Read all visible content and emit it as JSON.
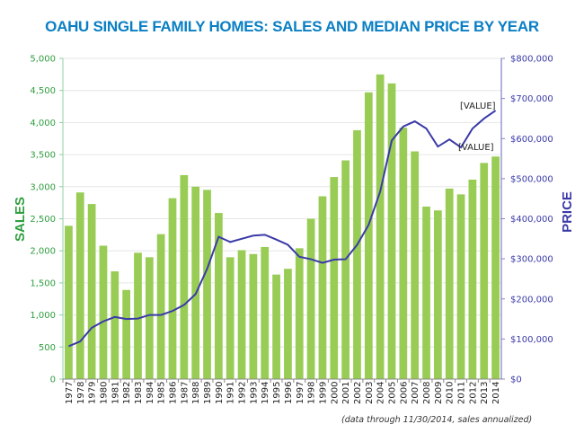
{
  "chart_data": {
    "type": "bar+line",
    "title": "OAHU SINGLE FAMILY HOMES: SALES AND MEDIAN PRICE BY YEAR",
    "footnote": "(data through 11/30/2014, sales annualized)",
    "categories": [
      "1977",
      "1978",
      "1979",
      "1980",
      "1981",
      "1982",
      "1983",
      "1984",
      "1985",
      "1986",
      "1987",
      "1988",
      "1989",
      "1990",
      "1991",
      "1992",
      "1993",
      "1994",
      "1995",
      "1996",
      "1997",
      "1998",
      "1999",
      "2000",
      "2001",
      "2002",
      "2003",
      "2004",
      "2005",
      "2006",
      "2007",
      "2008",
      "2009",
      "2010",
      "2011",
      "2012",
      "2013",
      "2014"
    ],
    "series": [
      {
        "name": "SALES",
        "type": "bar",
        "axis": "left",
        "color": "#99cc55",
        "values": [
          2390,
          2910,
          2730,
          2080,
          1680,
          1390,
          1970,
          1900,
          2260,
          2820,
          3180,
          3000,
          2950,
          2590,
          1900,
          2010,
          1950,
          2060,
          1630,
          1720,
          2040,
          2500,
          2850,
          3150,
          3410,
          3880,
          4470,
          4750,
          4610,
          3920,
          3550,
          2690,
          2630,
          2970,
          2880,
          3110,
          3370,
          3470
        ]
      },
      {
        "name": "PRICE",
        "type": "line",
        "axis": "right",
        "color": "#3a3aa8",
        "values": [
          82000,
          94000,
          128000,
          144000,
          155000,
          150000,
          151000,
          160000,
          160000,
          170000,
          185000,
          212000,
          275000,
          355000,
          342000,
          350000,
          358000,
          360000,
          348000,
          335000,
          305000,
          299000,
          290000,
          298000,
          299000,
          335000,
          385000,
          468000,
          595000,
          630000,
          643000,
          625000,
          580000,
          598000,
          578000,
          625000,
          650000,
          670000
        ]
      }
    ],
    "ylabel_left": "SALES",
    "ylabel_right": "PRICE",
    "ylim_left": [
      0,
      5000
    ],
    "ylim_right": [
      0,
      800000
    ],
    "yticks_left": [
      "0",
      "500",
      "1,000",
      "1,500",
      "2,000",
      "2,500",
      "3,000",
      "3,500",
      "4,000",
      "4,500",
      "5,000"
    ],
    "yticks_right": [
      "$0",
      "$100,000",
      "$200,000",
      "$300,000",
      "$400,000",
      "$500,000",
      "$600,000",
      "$700,000",
      "$800,000"
    ],
    "annotations": [
      "[VALUE]",
      "[VALUE]"
    ],
    "grid": true,
    "colors": {
      "title": "#0a7fc4",
      "left_axis": "#2e9e3e",
      "right_axis": "#3a3aa8",
      "grid": "#e6e6e6"
    }
  }
}
